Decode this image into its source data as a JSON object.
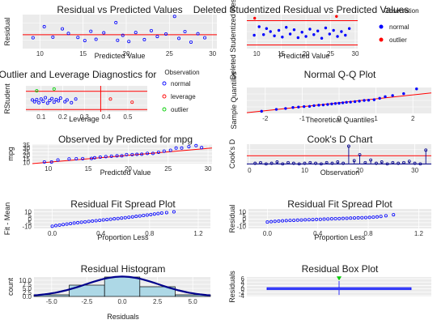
{
  "colors": {
    "panel_bg": "#ebebeb",
    "grid": "#ffffff",
    "blue": "#0000ff",
    "red": "#ff0000",
    "green": "#00cc00",
    "navy": "#00008b",
    "hist_fill": "#add8e6",
    "box_fill": "#aec7e8"
  },
  "chart_data": [
    {
      "id": "p1",
      "type": "scatter",
      "title": "Residual vs Predicted Values",
      "xlabel": "Predicted Value",
      "ylabel": "Residual",
      "xlim": [
        8,
        30.5
      ],
      "ylim": [
        -4.5,
        6.5
      ],
      "xticks": [
        "10",
        "15",
        "20",
        "25",
        "30"
      ],
      "xtick_values": [
        10,
        15,
        20,
        25,
        30
      ],
      "hline": 0,
      "grid": true,
      "points": [
        [
          9.2,
          -1.0
        ],
        [
          10.5,
          2.6
        ],
        [
          11.5,
          -0.8
        ],
        [
          12.6,
          1.9
        ],
        [
          13.3,
          0.4
        ],
        [
          14.4,
          -0.9
        ],
        [
          15.9,
          1.1
        ],
        [
          16.5,
          -1.5
        ],
        [
          17.4,
          0.6
        ],
        [
          18.8,
          3.9
        ],
        [
          19.6,
          -0.2
        ],
        [
          20.3,
          -2.2
        ],
        [
          21.1,
          0.7
        ],
        [
          22.1,
          -1.6
        ],
        [
          22.9,
          1.3
        ],
        [
          23.6,
          -0.6
        ],
        [
          24.6,
          0.2
        ],
        [
          25.6,
          5.9
        ],
        [
          26.1,
          -1.2
        ],
        [
          26.8,
          1.0
        ],
        [
          27.5,
          -2.4
        ],
        [
          28.3,
          0.3
        ],
        [
          29.1,
          -1.0
        ],
        [
          19.0,
          -1.8
        ],
        [
          15.2,
          -1.9
        ]
      ]
    },
    {
      "id": "p2",
      "type": "scatter",
      "title": "Deleted Studentized Residual vs Predicted Values",
      "xlabel": "Predicted Value",
      "ylabel": "Deleted Studentized Residual",
      "xlim": [
        8,
        30.5
      ],
      "ylim": [
        -2.6,
        3.0
      ],
      "xticks": [
        "10",
        "15",
        "20",
        "25",
        "30"
      ],
      "xtick_values": [
        10,
        15,
        20,
        25,
        30
      ],
      "hlines": [
        -2,
        2
      ],
      "grid": true,
      "legend": {
        "title": "Observation",
        "items": [
          "normal",
          "outlier"
        ]
      },
      "normal": [
        [
          9.5,
          -0.4
        ],
        [
          10.5,
          1.0
        ],
        [
          11.4,
          -0.3
        ],
        [
          12.0,
          0.7
        ],
        [
          12.8,
          0.2
        ],
        [
          13.6,
          -0.5
        ],
        [
          14.5,
          0.4
        ],
        [
          15.2,
          -0.7
        ],
        [
          16.0,
          0.9
        ],
        [
          16.8,
          -0.2
        ],
        [
          17.6,
          0.5
        ],
        [
          18.4,
          -0.8
        ],
        [
          19.2,
          0.1
        ],
        [
          20.0,
          -0.6
        ],
        [
          20.8,
          0.6
        ],
        [
          21.6,
          -0.3
        ],
        [
          22.4,
          0.3
        ],
        [
          23.2,
          -0.9
        ],
        [
          24.0,
          0.8
        ],
        [
          24.8,
          -0.2
        ],
        [
          25.6,
          0.4
        ],
        [
          26.4,
          -0.6
        ],
        [
          27.2,
          0.2
        ],
        [
          28.0,
          -0.4
        ],
        [
          28.8,
          0.7
        ]
      ],
      "outlier": [
        [
          9.6,
          2.4
        ],
        [
          26.2,
          2.7
        ]
      ]
    },
    {
      "id": "p3",
      "type": "scatter",
      "title": "Outlier and Leverage Diagnostics for",
      "xlabel": "Leverage",
      "ylabel": "RStudent",
      "xlim": [
        0.03,
        0.59
      ],
      "ylim": [
        -2.5,
        3.2
      ],
      "xticks": [
        "0.1",
        "0.2",
        "0.3",
        "0.4",
        "0.5"
      ],
      "xtick_values": [
        0.1,
        0.2,
        0.3,
        0.4,
        0.5
      ],
      "hlines": [
        -2,
        2
      ],
      "vline": 0.375,
      "grid": true,
      "legend": {
        "title": "Observation",
        "items": [
          "normal",
          "leverage",
          "outlier"
        ]
      },
      "normal": [
        [
          0.06,
          0.1
        ],
        [
          0.07,
          -0.3
        ],
        [
          0.08,
          0.2
        ],
        [
          0.09,
          -0.5
        ],
        [
          0.1,
          0.3
        ],
        [
          0.11,
          -0.2
        ],
        [
          0.12,
          0.6
        ],
        [
          0.13,
          -0.6
        ],
        [
          0.14,
          0.0
        ],
        [
          0.15,
          0.4
        ],
        [
          0.16,
          -0.4
        ],
        [
          0.17,
          0.2
        ],
        [
          0.18,
          -0.1
        ],
        [
          0.19,
          0.5
        ],
        [
          0.21,
          -0.3
        ],
        [
          0.22,
          0.1
        ],
        [
          0.24,
          -0.5
        ],
        [
          0.26,
          0.3
        ]
      ],
      "leverage": [
        [
          0.42,
          0.3
        ],
        [
          0.52,
          -0.4
        ]
      ],
      "outlier": [
        [
          0.08,
          2.1
        ],
        [
          0.16,
          2.5
        ]
      ]
    },
    {
      "id": "p4",
      "type": "scatter",
      "title": "Normal Q-Q Plot",
      "xlabel": "Theoretical Quantiles",
      "ylabel": "Sample Quantiles",
      "xlim": [
        -2.5,
        2.5
      ],
      "ylim": [
        -4.5,
        6.5
      ],
      "xticks": [
        "-2",
        "-1",
        "0",
        "1",
        "2"
      ],
      "xtick_values": [
        -2,
        -1,
        0,
        1,
        2
      ],
      "line": [
        [
          -2.5,
          -4.2
        ],
        [
          2.5,
          4.2
        ]
      ],
      "grid": true,
      "points": [
        [
          -2.1,
          -3.6
        ],
        [
          -1.7,
          -2.8
        ],
        [
          -1.45,
          -2.4
        ],
        [
          -1.25,
          -2.0
        ],
        [
          -1.1,
          -1.8
        ],
        [
          -0.95,
          -1.6
        ],
        [
          -0.8,
          -1.5
        ],
        [
          -0.68,
          -1.2
        ],
        [
          -0.55,
          -1.0
        ],
        [
          -0.43,
          -0.9
        ],
        [
          -0.31,
          -0.7
        ],
        [
          -0.2,
          -0.5
        ],
        [
          -0.1,
          -0.3
        ],
        [
          0.0,
          -0.2
        ],
        [
          0.1,
          0.0
        ],
        [
          0.2,
          0.2
        ],
        [
          0.31,
          0.3
        ],
        [
          0.43,
          0.5
        ],
        [
          0.55,
          0.7
        ],
        [
          0.68,
          1.0
        ],
        [
          0.8,
          1.1
        ],
        [
          0.95,
          1.3
        ],
        [
          1.1,
          1.9
        ],
        [
          1.25,
          2.6
        ],
        [
          1.45,
          3.1
        ],
        [
          1.75,
          3.9
        ],
        [
          2.1,
          5.9
        ]
      ]
    },
    {
      "id": "p5",
      "type": "scatter",
      "title": "Observed by Predicted for mpg",
      "xlabel": "Predicted Value",
      "ylabel": "mpg",
      "xlim": [
        8,
        30.5
      ],
      "ylim": [
        8,
        36
      ],
      "xticks": [
        "10",
        "15",
        "20",
        "25",
        "30"
      ],
      "xtick_values": [
        10,
        15,
        20,
        25,
        30
      ],
      "yticks": [
        "10",
        "15",
        "20",
        "25",
        "30",
        "35"
      ],
      "ytick_values": [
        10,
        15,
        20,
        25,
        30,
        35
      ],
      "line": [
        [
          8,
          8
        ],
        [
          30.5,
          30.5
        ]
      ],
      "grid": true,
      "points": [
        [
          9.5,
          10.4
        ],
        [
          10.4,
          10.4
        ],
        [
          11.2,
          13.3
        ],
        [
          12.6,
          14.7
        ],
        [
          13.5,
          15.0
        ],
        [
          14.3,
          15.2
        ],
        [
          15.4,
          15.5
        ],
        [
          15.8,
          16.4
        ],
        [
          16.5,
          17.3
        ],
        [
          17.2,
          18.1
        ],
        [
          17.9,
          18.7
        ],
        [
          18.6,
          19.2
        ],
        [
          19.2,
          19.2
        ],
        [
          19.8,
          21.0
        ],
        [
          20.5,
          21.0
        ],
        [
          21.1,
          21.4
        ],
        [
          21.7,
          21.5
        ],
        [
          22.4,
          22.8
        ],
        [
          23.1,
          22.8
        ],
        [
          23.8,
          24.4
        ],
        [
          24.5,
          26.0
        ],
        [
          25.3,
          27.3
        ],
        [
          26.0,
          30.4
        ],
        [
          26.7,
          30.4
        ],
        [
          27.6,
          32.4
        ],
        [
          28.5,
          33.9
        ],
        [
          29.2,
          31.0
        ]
      ]
    },
    {
      "id": "p6",
      "type": "bar",
      "title": "Cook's D Chart",
      "xlabel": "Observation",
      "ylabel": "Cook's D",
      "xlim": [
        -0.5,
        33
      ],
      "ylim": [
        -0.02,
        0.3
      ],
      "xticks": [
        "0",
        "10",
        "20",
        "30"
      ],
      "xtick_values": [
        0,
        10,
        20,
        30
      ],
      "threshold": 0.125,
      "grid": true,
      "values": [
        0.01,
        0.02,
        0.0,
        0.01,
        0.03,
        0.0,
        0.02,
        0.01,
        0.0,
        0.01,
        0.02,
        0.01,
        0.0,
        0.02,
        0.01,
        0.03,
        0.01,
        0.27,
        0.05,
        0.14,
        0.02,
        0.06,
        0.01,
        0.03,
        0.0,
        0.02,
        0.01,
        0.02,
        0.04,
        0.01,
        0.0,
        0.21
      ]
    },
    {
      "id": "p7",
      "type": "scatter",
      "title": "Residual Fit Spread Plot",
      "xlabel": "Proportion Less",
      "ylabel": "Fit - Mean",
      "xlim": [
        -0.15,
        1.3
      ],
      "ylim": [
        -13,
        14
      ],
      "xticks": [
        "0.0",
        "0.4",
        "0.8",
        "1.2"
      ],
      "xtick_values": [
        0,
        0.4,
        0.8,
        1.2
      ],
      "yticks": [
        "-10",
        "-5",
        "0",
        "5",
        "10"
      ],
      "ytick_values": [
        -10,
        -5,
        0,
        5,
        10
      ],
      "grid": true,
      "points": [
        [
          0.0,
          -10.0
        ],
        [
          0.03,
          -9.1
        ],
        [
          0.06,
          -8.3
        ],
        [
          0.09,
          -7.6
        ],
        [
          0.12,
          -6.9
        ],
        [
          0.15,
          -6.2
        ],
        [
          0.18,
          -5.6
        ],
        [
          0.21,
          -5.0
        ],
        [
          0.24,
          -4.4
        ],
        [
          0.27,
          -3.8
        ],
        [
          0.3,
          -3.3
        ],
        [
          0.33,
          -2.8
        ],
        [
          0.36,
          -2.3
        ],
        [
          0.39,
          -1.7
        ],
        [
          0.42,
          -1.2
        ],
        [
          0.45,
          -0.7
        ],
        [
          0.48,
          -0.2
        ],
        [
          0.51,
          0.3
        ],
        [
          0.54,
          0.8
        ],
        [
          0.57,
          1.4
        ],
        [
          0.6,
          1.9
        ],
        [
          0.63,
          2.5
        ],
        [
          0.66,
          3.1
        ],
        [
          0.69,
          3.7
        ],
        [
          0.72,
          4.3
        ],
        [
          0.75,
          5.0
        ],
        [
          0.78,
          5.6
        ],
        [
          0.81,
          6.3
        ],
        [
          0.84,
          7.0
        ],
        [
          0.87,
          7.7
        ],
        [
          0.9,
          8.4
        ],
        [
          0.94,
          9.0
        ],
        [
          1.0,
          10.0
        ]
      ]
    },
    {
      "id": "p8",
      "type": "scatter",
      "title": "Residual Fit Spread Plot",
      "xlabel": "Proportion Less",
      "ylabel": "Residual",
      "xlim": [
        -0.15,
        1.3
      ],
      "ylim": [
        -13,
        14
      ],
      "xticks": [
        "0.0",
        "0.4",
        "0.8",
        "1.2"
      ],
      "xtick_values": [
        0,
        0.4,
        0.8,
        1.2
      ],
      "yticks": [
        "-10",
        "-5",
        "0",
        "5",
        "10"
      ],
      "ytick_values": [
        -10,
        -5,
        0,
        5,
        10
      ],
      "grid": true,
      "points": [
        [
          0.0,
          -4.2
        ],
        [
          0.03,
          -3.6
        ],
        [
          0.06,
          -3.2
        ],
        [
          0.09,
          -2.8
        ],
        [
          0.12,
          -2.5
        ],
        [
          0.15,
          -2.2
        ],
        [
          0.18,
          -1.9
        ],
        [
          0.21,
          -1.7
        ],
        [
          0.24,
          -1.5
        ],
        [
          0.27,
          -1.3
        ],
        [
          0.3,
          -1.1
        ],
        [
          0.33,
          -0.9
        ],
        [
          0.36,
          -0.7
        ],
        [
          0.39,
          -0.5
        ],
        [
          0.42,
          -0.3
        ],
        [
          0.45,
          -0.1
        ],
        [
          0.48,
          0.1
        ],
        [
          0.51,
          0.3
        ],
        [
          0.54,
          0.5
        ],
        [
          0.57,
          0.7
        ],
        [
          0.6,
          0.9
        ],
        [
          0.63,
          1.1
        ],
        [
          0.66,
          1.3
        ],
        [
          0.69,
          1.5
        ],
        [
          0.72,
          1.7
        ],
        [
          0.75,
          1.9
        ],
        [
          0.78,
          2.1
        ],
        [
          0.81,
          2.3
        ],
        [
          0.84,
          2.6
        ],
        [
          0.87,
          3.0
        ],
        [
          0.9,
          3.6
        ],
        [
          0.94,
          4.6
        ],
        [
          1.0,
          6.0
        ]
      ]
    },
    {
      "id": "p9",
      "type": "bar",
      "title": "Residual Histogram",
      "xlabel": "Residuals",
      "ylabel": "count",
      "xlim": [
        -6.25,
        6.25
      ],
      "ylim": [
        0,
        12
      ],
      "xticks": [
        "-5.0",
        "-2.5",
        "0.0",
        "2.5",
        "5.0"
      ],
      "xtick_values": [
        -5,
        -2.5,
        0,
        2.5,
        5
      ],
      "yticks": [
        "0.0",
        "2.5",
        "5.0",
        "7.5",
        "10.0"
      ],
      "ytick_values": [
        0,
        2.5,
        5,
        7.5,
        10
      ],
      "bins": [
        [
          -6.25,
          -3.75,
          1
        ],
        [
          -3.75,
          -1.25,
          7
        ],
        [
          -1.25,
          1.25,
          14
        ],
        [
          1.25,
          3.75,
          6
        ],
        [
          3.75,
          6.25,
          1
        ]
      ],
      "density": {
        "mean": 0,
        "sd": 2.6,
        "scale": 80
      },
      "grid": true
    },
    {
      "id": "p10",
      "type": "box",
      "title": "Residual Box Plot",
      "xlabel": "",
      "ylabel": "Residuals",
      "xlim": [
        -0.5,
        0.5
      ],
      "ylim": [
        -4.5,
        7
      ],
      "yticks": [
        "-4",
        "-2",
        "0",
        "2",
        "4",
        "6"
      ],
      "ytick_values": [
        -4,
        -2,
        0,
        2,
        4,
        6
      ],
      "box": {
        "q1": -1.5,
        "median": 0.2,
        "q3": 1.2,
        "whisker_low": -3.6,
        "whisker_high": 4.6
      },
      "outliers": [
        5.9
      ],
      "grid": true
    }
  ]
}
